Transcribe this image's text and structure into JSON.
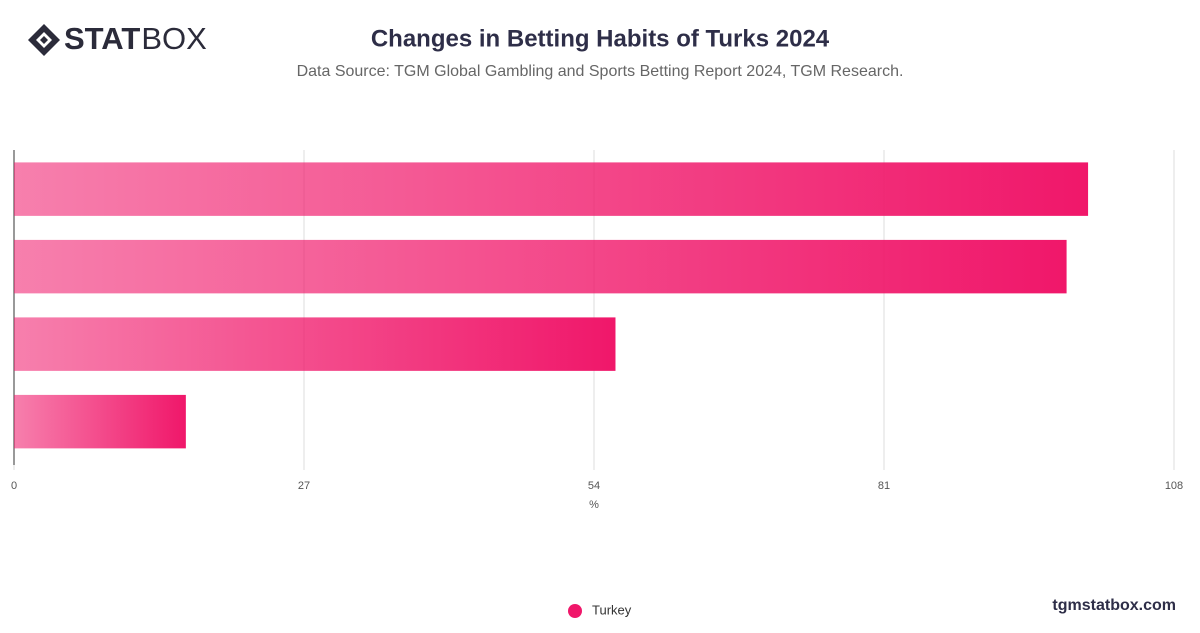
{
  "logo": [
    "STAT",
    "BOX"
  ],
  "footer": "tgmstatbox.com",
  "chart_data": {
    "type": "bar",
    "orientation": "horizontal",
    "title": "Changes in Betting Habits of Turks 2024",
    "subtitle": "Data Source: TGM Global Gambling and Sports Betting Report 2024, TGM Research.",
    "x_label": "%",
    "categories": [
      null,
      null,
      null,
      null
    ],
    "series": [
      {
        "name": "Turkey",
        "color": "#f0176a",
        "values": [
          100,
          98,
          56,
          16
        ]
      }
    ],
    "xlim": [
      0,
      108
    ],
    "xticks": [
      0,
      27,
      54,
      81,
      108
    ],
    "grid": true,
    "legend": "bottom"
  }
}
